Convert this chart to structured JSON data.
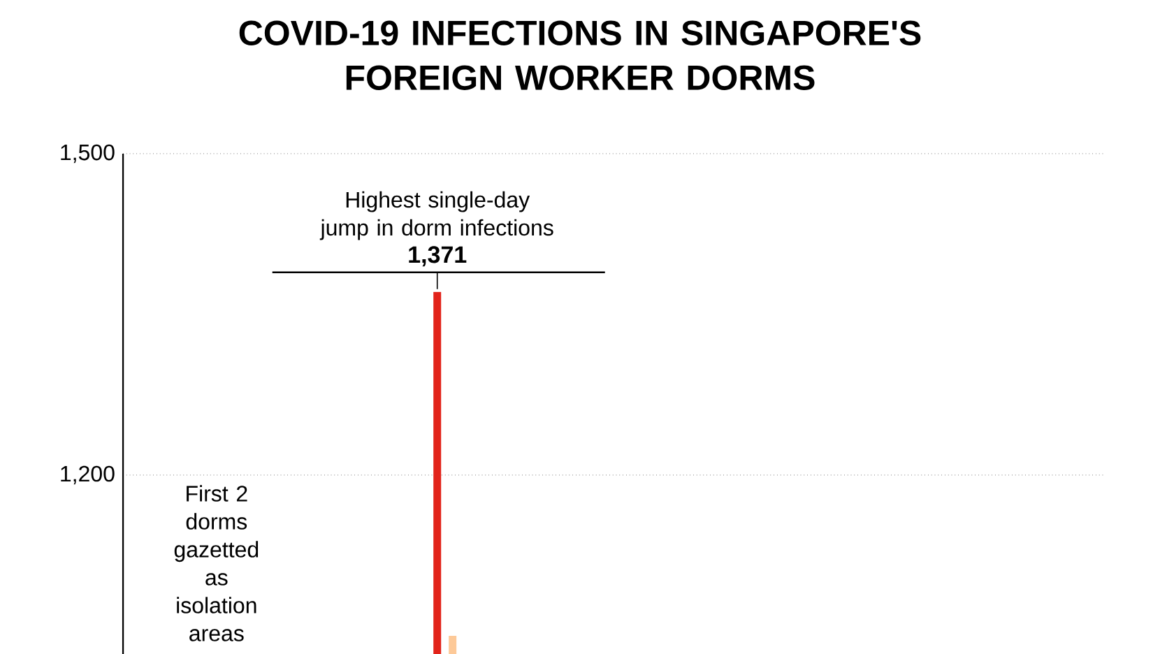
{
  "chart_data": {
    "type": "bar",
    "title": "COVID-19 INFECTIONS IN SINGAPORE'S FOREIGN WORKER DORMS",
    "categories": [
      null,
      null,
      null,
      null,
      null,
      null,
      null,
      null,
      null,
      null,
      null,
      null,
      null,
      null,
      null,
      null,
      null,
      null,
      null,
      null,
      null,
      null,
      null,
      null,
      null,
      null,
      null,
      null,
      null,
      null,
      null,
      null,
      null,
      null,
      null,
      null,
      null,
      null,
      null,
      null,
      null,
      null,
      null,
      null,
      null,
      null,
      null,
      null,
      null,
      null,
      null,
      null,
      null,
      null,
      null,
      null,
      null,
      null,
      null,
      null,
      null,
      null,
      null,
      null
    ],
    "values": [
      null,
      null,
      null,
      null,
      null,
      null,
      null,
      null,
      null,
      null,
      null,
      null,
      null,
      null,
      null,
      null,
      null,
      null,
      null,
      null,
      1371,
      1050,
      null,
      null,
      null,
      null,
      null,
      null,
      null,
      null,
      null,
      null,
      null,
      null,
      null,
      null,
      null,
      null,
      null,
      null,
      null,
      null,
      null,
      null,
      null,
      null,
      null,
      null,
      null,
      null,
      null,
      null,
      null,
      null,
      null,
      null,
      null,
      null,
      null,
      null,
      null,
      null,
      null,
      null
    ],
    "colors": [
      "#e2231a",
      "#e2231a",
      "#e2231a",
      "#e2231a",
      "#e2231a",
      "#e2231a",
      "#e2231a",
      "#e2231a",
      "#e2231a",
      "#e2231a",
      "#e2231a",
      "#e2231a",
      "#e2231a",
      "#e2231a",
      "#e2231a",
      "#e2231a",
      "#e2231a",
      "#e2231a",
      "#e2231a",
      "#e2231a",
      "#e2231a",
      "#fdc998",
      "#fdc998",
      "#fdc998",
      "#fdc998",
      "#fdc998",
      "#fdc998",
      "#fdc998",
      "#fdc998",
      "#fdc998",
      "#fdc998",
      "#fdc998",
      "#fdc998",
      "#fdc998",
      "#fdc998",
      "#fdc998",
      "#fdc998",
      "#fdc998",
      "#fdc998",
      "#fdc998",
      "#fdc998",
      "#fdc998",
      "#fdc998",
      "#fdc998",
      "#fdc998",
      "#fdc998",
      "#fdc998",
      "#fdc998",
      "#fdc998",
      "#fdc998",
      "#fdc998",
      "#fdc998",
      "#fdc998",
      "#fdc998",
      "#fdc998",
      "#fdc998",
      "#fdc998",
      "#fdc998",
      "#fdc998",
      "#fdc998",
      "#fdc998",
      "#fdc998",
      "#fdc998",
      "#fdc998"
    ],
    "value_labels": [
      null,
      null,
      null,
      null,
      null,
      null,
      null,
      null,
      null,
      null,
      null,
      null,
      null,
      null,
      null,
      null,
      null,
      null,
      null,
      null,
      "1,371",
      null,
      null,
      null,
      null,
      null,
      null,
      null,
      null,
      null,
      null,
      null,
      null,
      null,
      null,
      null,
      null,
      null,
      null,
      null,
      null,
      null,
      null,
      null,
      null,
      null,
      null,
      null,
      null,
      null,
      null,
      null,
      null,
      null,
      null,
      null,
      null,
      null,
      null,
      null,
      null,
      null,
      null,
      null
    ],
    "ylim": [
      1033,
      1500
    ],
    "yticks": [
      {
        "value": 1200,
        "label": "1,200"
      },
      {
        "value": 1500,
        "label": "1,500"
      }
    ],
    "grid": "y",
    "annotations": [
      "Highest single-day jump in dorm infections",
      "First 2 dorms gazetted as isolation areas"
    ]
  }
}
